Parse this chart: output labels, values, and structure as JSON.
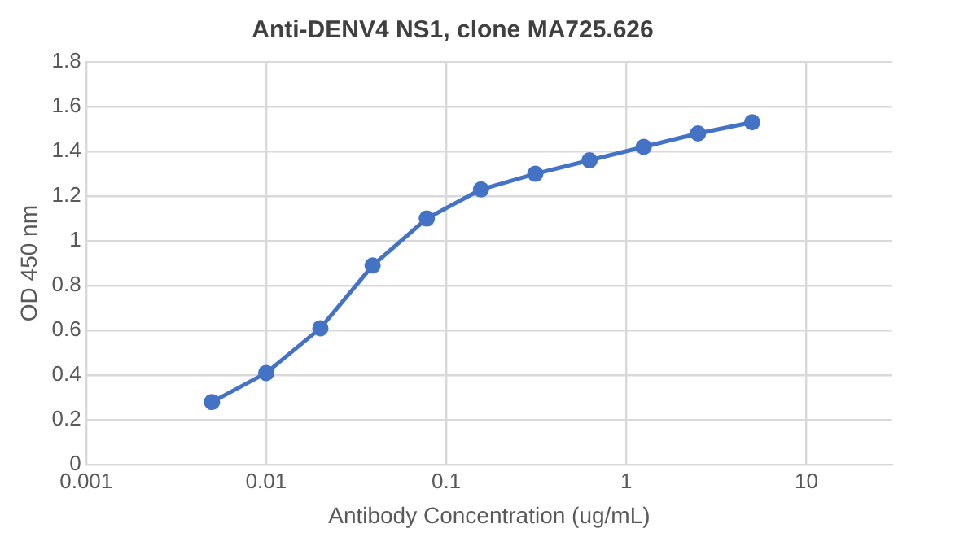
{
  "chart_data": {
    "type": "line",
    "title": "Anti-DENV4 NS1, clone MA725.626",
    "xlabel": "Antibody Concentration (ug/mL)",
    "ylabel": "OD 450 nm",
    "x": [
      0.005,
      0.01,
      0.02,
      0.039,
      0.078,
      0.156,
      0.3125,
      0.625,
      1.25,
      2.5,
      5
    ],
    "series": [
      {
        "color": "#4472c4",
        "values": [
          0.28,
          0.41,
          0.61,
          0.89,
          1.1,
          1.23,
          1.3,
          1.36,
          1.42,
          1.48,
          1.53
        ]
      }
    ],
    "log": "x",
    "xlim": [
      0.001,
      30
    ],
    "xticks": [
      0.001,
      0.01,
      0.1,
      1,
      10
    ],
    "ylim": [
      0,
      1.8
    ],
    "yticks": [
      0,
      0.2,
      0.4,
      0.6,
      0.8,
      1,
      1.2,
      1.4,
      1.6,
      1.8
    ],
    "grid": true,
    "legend": false,
    "marker": "circle",
    "line_style": "solid"
  }
}
